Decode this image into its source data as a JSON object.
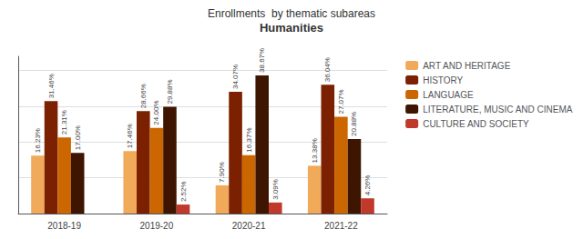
{
  "chart_data": {
    "type": "bar",
    "title": "Enrollments  by thematic subareas",
    "subtitle": "Humanities",
    "categories": [
      "2018-19",
      "2019-20",
      "2020-21",
      "2021-22"
    ],
    "series": [
      {
        "name": "ART AND HERITAGE",
        "color": "#F0AA5A",
        "values": [
          16.23,
          17.46,
          7.9,
          13.38
        ],
        "value_labels": [
          "16.23%",
          "17.46%",
          "7.90%",
          "13.38%"
        ]
      },
      {
        "name": "HISTORY",
        "color": "#7B2000",
        "values": [
          31.46,
          28.66,
          34.07,
          36.04
        ],
        "value_labels": [
          "31.46%",
          "28.66%",
          "34.07%",
          "36.04%"
        ]
      },
      {
        "name": "LANGUAGE",
        "color": "#CC6600",
        "values": [
          21.31,
          24.0,
          16.37,
          27.07
        ],
        "value_labels": [
          "21.31%",
          "24.00%",
          "16.37%",
          "27.07%"
        ]
      },
      {
        "name": "LITERATURE, MUSIC AND CINEMA",
        "color": "#3D1500",
        "values": [
          17.0,
          29.88,
          38.67,
          20.88
        ],
        "value_labels": [
          "17.00%",
          "29.88%",
          "38.67%",
          "20.88%"
        ]
      },
      {
        "name": "CULTURE AND SOCIETY",
        "color": "#C0392B",
        "values": [
          0.0,
          2.52,
          3.09,
          4.26
        ],
        "value_labels": [
          null,
          "2.52%",
          "3.09%",
          "4.26%"
        ]
      }
    ],
    "ylim": [
      0,
      44
    ],
    "yticks": [
      0,
      10,
      20,
      30,
      40
    ],
    "grid": true,
    "legend": "upper right",
    "data_labels": true,
    "tick_labels": "x"
  }
}
